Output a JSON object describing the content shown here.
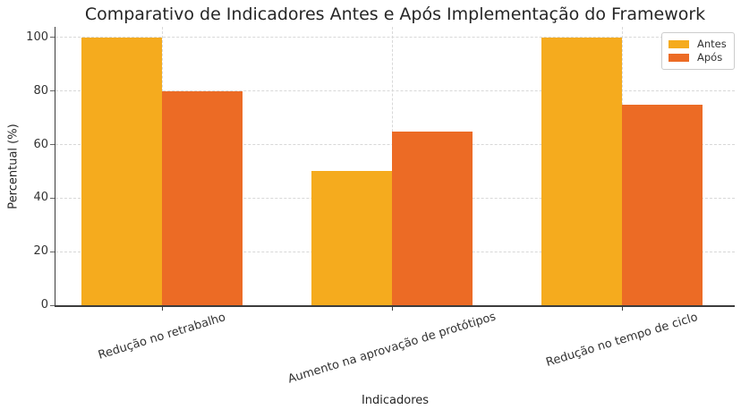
{
  "chart_data": {
    "type": "bar",
    "title": "Comparativo de Indicadores Antes e Após Implementação do Framework",
    "xlabel": "Indicadores",
    "ylabel": "Percentual (%)",
    "categories": [
      "Redução no retrabalho",
      "Aumento na aprovação de protótipos",
      "Redução no tempo de ciclo"
    ],
    "series": [
      {
        "name": "Antes",
        "color": "#F5AB1E",
        "values": [
          100,
          50,
          100
        ]
      },
      {
        "name": "Após",
        "color": "#EC6B25",
        "values": [
          80,
          65,
          75
        ]
      }
    ],
    "yticks": [
      0,
      20,
      40,
      60,
      80,
      100
    ],
    "ylim": [
      0,
      104
    ],
    "grid": "dashed horizontal and vertical",
    "legend": {
      "position": "upper-right",
      "entries": [
        "Antes",
        "Após"
      ]
    },
    "colors": {
      "antes": "#F5AB1E",
      "apos": "#EC6B25",
      "gridline": "#d8d8d8",
      "spine": "#3c3c3c",
      "text": "#262626",
      "tick_text": "#333333",
      "legend_border": "#cccccc"
    }
  }
}
